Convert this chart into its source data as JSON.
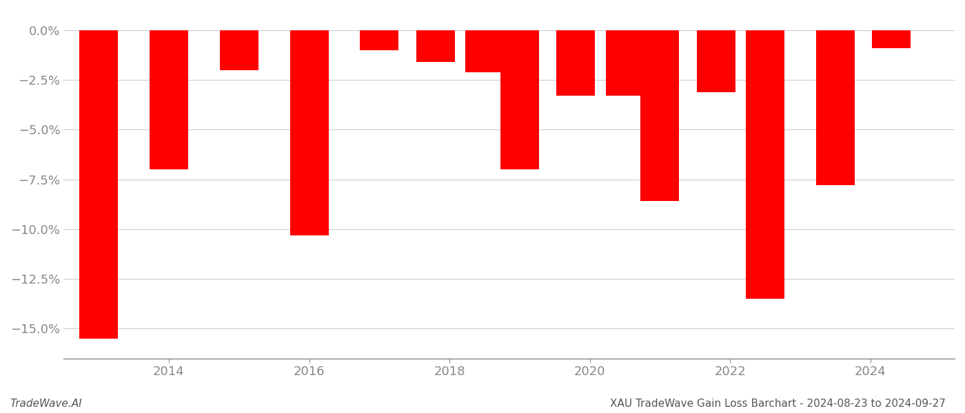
{
  "bar_years": [
    2013,
    2014,
    2015,
    2016,
    2017,
    2017.8,
    2018.5,
    2019,
    2019.8,
    2020.5,
    2021,
    2021.8,
    2022.5,
    2023.5,
    2024.3
  ],
  "values": [
    -15.5,
    -7.0,
    -2.0,
    -10.3,
    -1.0,
    -1.6,
    -2.1,
    -7.0,
    -3.3,
    -3.3,
    -8.6,
    -3.1,
    -13.5,
    -7.8,
    -0.9
  ],
  "bar_color": "#FF0000",
  "bar_width": 0.55,
  "ylim": [
    -16.5,
    0.8
  ],
  "xlim": [
    2012.5,
    2025.2
  ],
  "yticks": [
    0.0,
    -2.5,
    -5.0,
    -7.5,
    -10.0,
    -12.5,
    -15.0
  ],
  "xticks": [
    2014,
    2016,
    2018,
    2020,
    2022,
    2024
  ],
  "title": "XAU TradeWave Gain Loss Barchart - 2024-08-23 to 2024-09-27",
  "watermark": "TradeWave.AI",
  "bg_color": "#FFFFFF",
  "grid_color": "#CCCCCC",
  "axis_color": "#888888",
  "tick_color": "#888888",
  "text_color": "#555555"
}
